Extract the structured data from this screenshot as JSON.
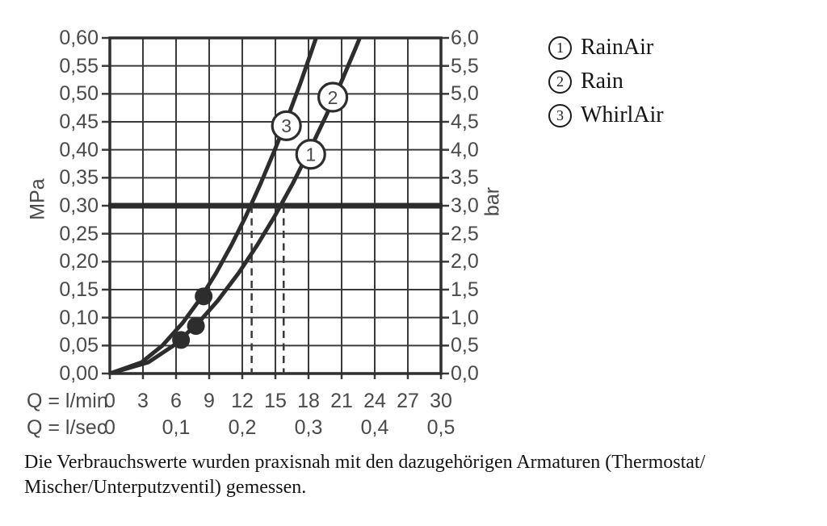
{
  "legend": {
    "items": [
      {
        "num": "1",
        "label": "RainAir"
      },
      {
        "num": "2",
        "label": "Rain"
      },
      {
        "num": "3",
        "label": "WhirlAir"
      }
    ]
  },
  "caption": {
    "line1": "Die Verbrauchswerte wurden praxisnah mit den dazugehörigen Armaturen (Thermostat/",
    "line2": "Mischer/Unterputzventil) gemessen."
  },
  "chart_data": {
    "type": "line",
    "title": "",
    "xlabel_row1": "Q = l/min",
    "xlabel_row2": "Q = l/sec",
    "ylabel_left": "MPa",
    "ylabel_right": "bar",
    "x_range_lmin": [
      0,
      30
    ],
    "y_range_mpa": [
      0,
      0.6
    ],
    "y_range_bar": [
      0,
      6
    ],
    "grid": true,
    "x_ticks_lmin": [
      "0",
      "3",
      "6",
      "9",
      "12",
      "15",
      "18",
      "21",
      "24",
      "27",
      "30"
    ],
    "x_ticks_lsec": [
      {
        "label": "0",
        "at_lmin": 0
      },
      {
        "label": "0,1",
        "at_lmin": 6
      },
      {
        "label": "0,2",
        "at_lmin": 12
      },
      {
        "label": "0,3",
        "at_lmin": 18
      },
      {
        "label": "0,4",
        "at_lmin": 24
      },
      {
        "label": "0,5",
        "at_lmin": 30
      }
    ],
    "y_ticks_mpa": [
      "0,60",
      "0,55",
      "0,50",
      "0,45",
      "0,40",
      "0,35",
      "0,30",
      "0,25",
      "0,20",
      "0,15",
      "0,10",
      "0,05",
      "0,00"
    ],
    "y_ticks_bar": [
      "6,0",
      "5,5",
      "5,0",
      "4,5",
      "4,0",
      "3,5",
      "3,0",
      "2,5",
      "2,0",
      "1,5",
      "1,0",
      "0,5",
      "0,0"
    ],
    "reference_line_mpa": 0.3,
    "drop_lines_lmin": [
      12.85,
      15.75
    ],
    "series": [
      {
        "name": "WhirlAir",
        "curve_label_nums": [
          "3"
        ],
        "points": [
          [
            0,
            0
          ],
          [
            2.88,
            0.02
          ],
          [
            4.76,
            0.05
          ],
          [
            6.58,
            0.09
          ],
          [
            8.06,
            0.13
          ],
          [
            9.64,
            0.18
          ],
          [
            11.03,
            0.23
          ],
          [
            12.29,
            0.28
          ],
          [
            13.67,
            0.34
          ],
          [
            14.95,
            0.4
          ],
          [
            16.15,
            0.46
          ],
          [
            17.28,
            0.52
          ],
          [
            18.34,
            0.58
          ],
          [
            19.2,
            0.63
          ]
        ]
      },
      {
        "name": "RainAir / Rain",
        "curve_label_nums": [
          "1",
          "2"
        ],
        "points": [
          [
            0,
            0
          ],
          [
            3.49,
            0.02
          ],
          [
            5.77,
            0.05
          ],
          [
            7.98,
            0.09
          ],
          [
            9.77,
            0.13
          ],
          [
            11.68,
            0.18
          ],
          [
            13.37,
            0.23
          ],
          [
            14.9,
            0.28
          ],
          [
            16.58,
            0.34
          ],
          [
            18.12,
            0.4
          ],
          [
            19.57,
            0.46
          ],
          [
            20.94,
            0.52
          ],
          [
            22.23,
            0.58
          ],
          [
            23.27,
            0.63
          ]
        ]
      }
    ],
    "curve_labels": [
      {
        "num": "3",
        "lmin": 16.0,
        "mpa": 0.443
      },
      {
        "num": "1",
        "lmin": 18.2,
        "mpa": 0.392
      },
      {
        "num": "2",
        "lmin": 20.2,
        "mpa": 0.494
      }
    ],
    "measure_dots": [
      {
        "lmin": 8.5,
        "mpa": 0.138
      },
      {
        "lmin": 7.8,
        "mpa": 0.085
      },
      {
        "lmin": 6.45,
        "mpa": 0.06
      }
    ],
    "colors": {
      "background": "#ffffff",
      "grid": "#3a3a3a",
      "border": "#2e2e2e",
      "curve": "#2d2d2d",
      "tick_label": "#4a4a4a",
      "reference_line": "#2b2b2b",
      "drop_line": "#3a3a3a",
      "dot": "#2d2d2d"
    }
  }
}
